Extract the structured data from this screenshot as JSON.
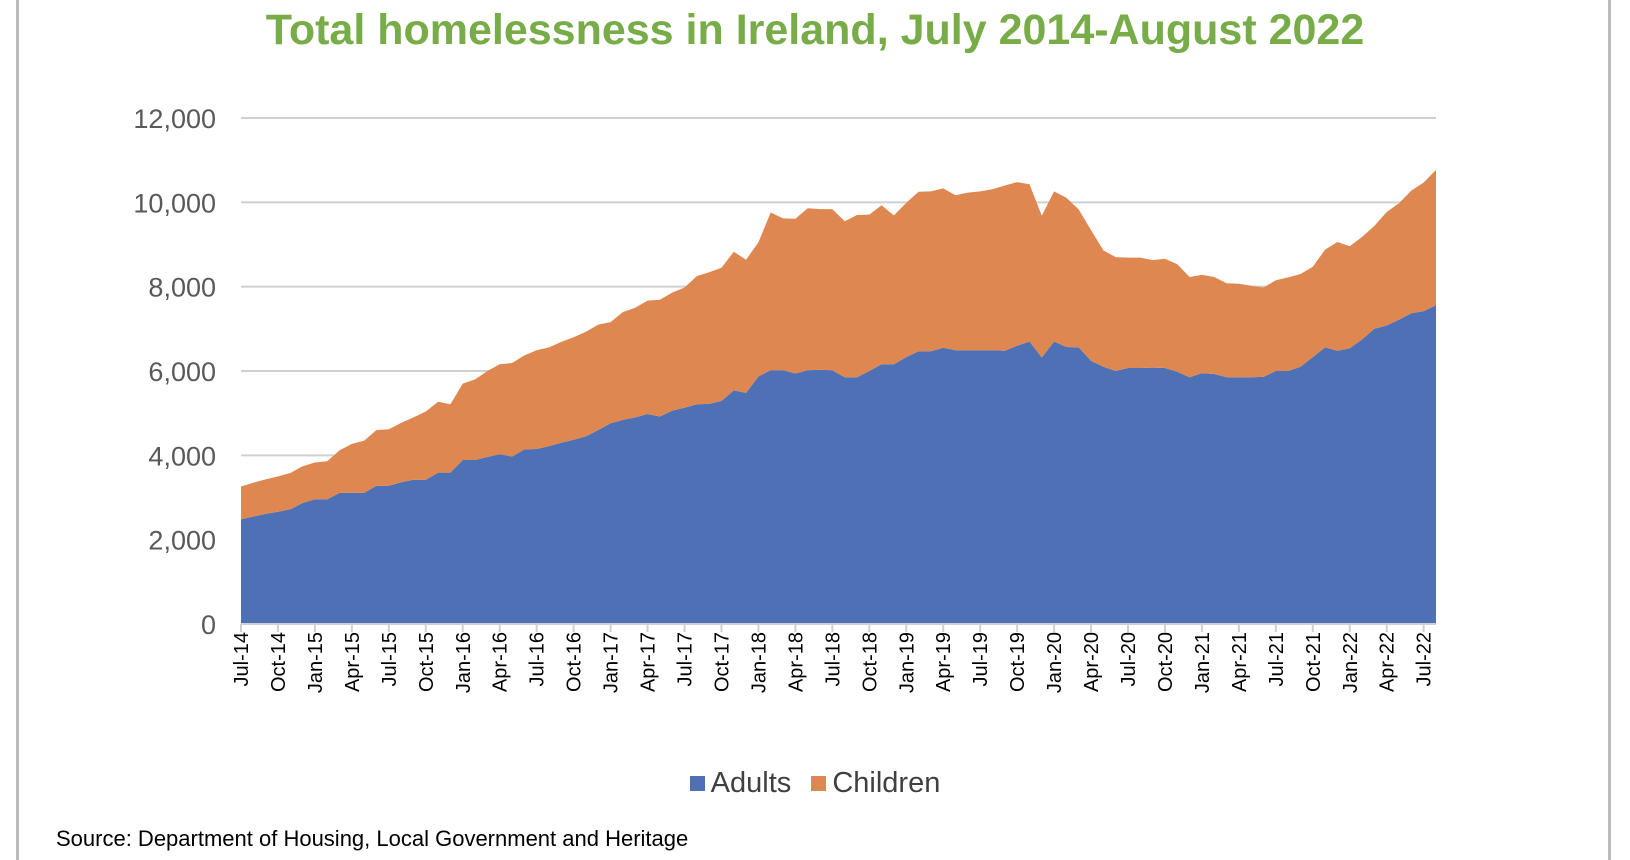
{
  "chart_data": {
    "type": "area",
    "stacked": true,
    "title": "Total homelessness in Ireland, July 2014-August 2022",
    "source": "Source: Department of Housing, Local Government and Heritage",
    "ylim": [
      0,
      12000
    ],
    "yticks": [
      "0",
      "2,000",
      "4,000",
      "6,000",
      "8,000",
      "10,000",
      "12,000"
    ],
    "grid": true,
    "legend_position": "bottom",
    "x_tick_labels": [
      "Jul-14",
      "Oct-14",
      "Jan-15",
      "Apr-15",
      "Jul-15",
      "Oct-15",
      "Jan-16",
      "Apr-16",
      "Jul-16",
      "Oct-16",
      "Jan-17",
      "Apr-17",
      "Jul-17",
      "Oct-17",
      "Jan-18",
      "Apr-18",
      "Jul-18",
      "Oct-18",
      "Jan-19",
      "Apr-19",
      "Jul-19",
      "Oct-19",
      "Jan-20",
      "Apr-20",
      "Jul-20",
      "Oct-20",
      "Jan-21",
      "Apr-21",
      "Jul-21",
      "Oct-21",
      "Jan-22",
      "Apr-22",
      "Jul-22"
    ],
    "x": [
      "Jul-14",
      "Aug-14",
      "Sep-14",
      "Oct-14",
      "Nov-14",
      "Dec-14",
      "Jan-15",
      "Feb-15",
      "Mar-15",
      "Apr-15",
      "May-15",
      "Jun-15",
      "Jul-15",
      "Aug-15",
      "Sep-15",
      "Oct-15",
      "Nov-15",
      "Dec-15",
      "Jan-16",
      "Feb-16",
      "Mar-16",
      "Apr-16",
      "May-16",
      "Jun-16",
      "Jul-16",
      "Aug-16",
      "Sep-16",
      "Oct-16",
      "Nov-16",
      "Dec-16",
      "Jan-17",
      "Feb-17",
      "Mar-17",
      "Apr-17",
      "May-17",
      "Jun-17",
      "Jul-17",
      "Aug-17",
      "Sep-17",
      "Oct-17",
      "Nov-17",
      "Dec-17",
      "Jan-18",
      "Feb-18",
      "Mar-18",
      "Apr-18",
      "May-18",
      "Jun-18",
      "Jul-18",
      "Aug-18",
      "Sep-18",
      "Oct-18",
      "Nov-18",
      "Dec-18",
      "Jan-19",
      "Feb-19",
      "Mar-19",
      "Apr-19",
      "May-19",
      "Jun-19",
      "Jul-19",
      "Aug-19",
      "Sep-19",
      "Oct-19",
      "Nov-19",
      "Dec-19",
      "Jan-20",
      "Feb-20",
      "Mar-20",
      "Apr-20",
      "May-20",
      "Jun-20",
      "Jul-20",
      "Aug-20",
      "Sep-20",
      "Oct-20",
      "Nov-20",
      "Dec-20",
      "Jan-21",
      "Feb-21",
      "Mar-21",
      "Apr-21",
      "May-21",
      "Jun-21",
      "Jul-21",
      "Aug-21",
      "Sep-21",
      "Oct-21",
      "Nov-21",
      "Dec-21",
      "Jan-22",
      "Feb-22",
      "Mar-22",
      "Apr-22",
      "May-22",
      "Jun-22",
      "Jul-22",
      "Aug-22"
    ],
    "series": [
      {
        "name": "Adults",
        "color": "#4e71b5",
        "values": [
          2480,
          2550,
          2610,
          2660,
          2720,
          2870,
          2960,
          2960,
          3110,
          3110,
          3110,
          3280,
          3280,
          3360,
          3420,
          3420,
          3590,
          3590,
          3890,
          3890,
          3960,
          4030,
          3970,
          4140,
          4150,
          4220,
          4300,
          4370,
          4450,
          4600,
          4760,
          4840,
          4900,
          4980,
          4920,
          5060,
          5130,
          5210,
          5220,
          5290,
          5540,
          5480,
          5870,
          6020,
          6020,
          5940,
          6020,
          6030,
          6020,
          5850,
          5850,
          6000,
          6160,
          6160,
          6330,
          6470,
          6470,
          6550,
          6490,
          6490,
          6490,
          6490,
          6480,
          6600,
          6700,
          6320,
          6700,
          6570,
          6560,
          6240,
          6100,
          6000,
          6070,
          6070,
          6080,
          6070,
          5980,
          5850,
          5950,
          5930,
          5850,
          5850,
          5850,
          5860,
          6000,
          6000,
          6100,
          6330,
          6560,
          6480,
          6540,
          6750,
          7000,
          7080,
          7220,
          7370,
          7420,
          7560
        ]
      },
      {
        "name": "Children",
        "color": "#df8750",
        "values": [
          780,
          800,
          820,
          840,
          860,
          870,
          870,
          900,
          1010,
          1160,
          1240,
          1320,
          1340,
          1410,
          1480,
          1620,
          1680,
          1620,
          1810,
          1910,
          2040,
          2130,
          2220,
          2230,
          2340,
          2340,
          2390,
          2430,
          2480,
          2500,
          2400,
          2560,
          2600,
          2690,
          2770,
          2800,
          2850,
          3040,
          3120,
          3160,
          3290,
          3160,
          3180,
          3740,
          3600,
          3670,
          3840,
          3810,
          3820,
          3700,
          3850,
          3710,
          3770,
          3530,
          3660,
          3780,
          3790,
          3780,
          3680,
          3740,
          3770,
          3820,
          3920,
          3880,
          3730,
          3360,
          3560,
          3540,
          3270,
          3100,
          2760,
          2700,
          2620,
          2620,
          2550,
          2590,
          2550,
          2380,
          2330,
          2300,
          2230,
          2220,
          2170,
          2120,
          2150,
          2220,
          2200,
          2140,
          2320,
          2580,
          2420,
          2430,
          2440,
          2690,
          2760,
          2910,
          3050,
          3210
        ]
      }
    ]
  }
}
